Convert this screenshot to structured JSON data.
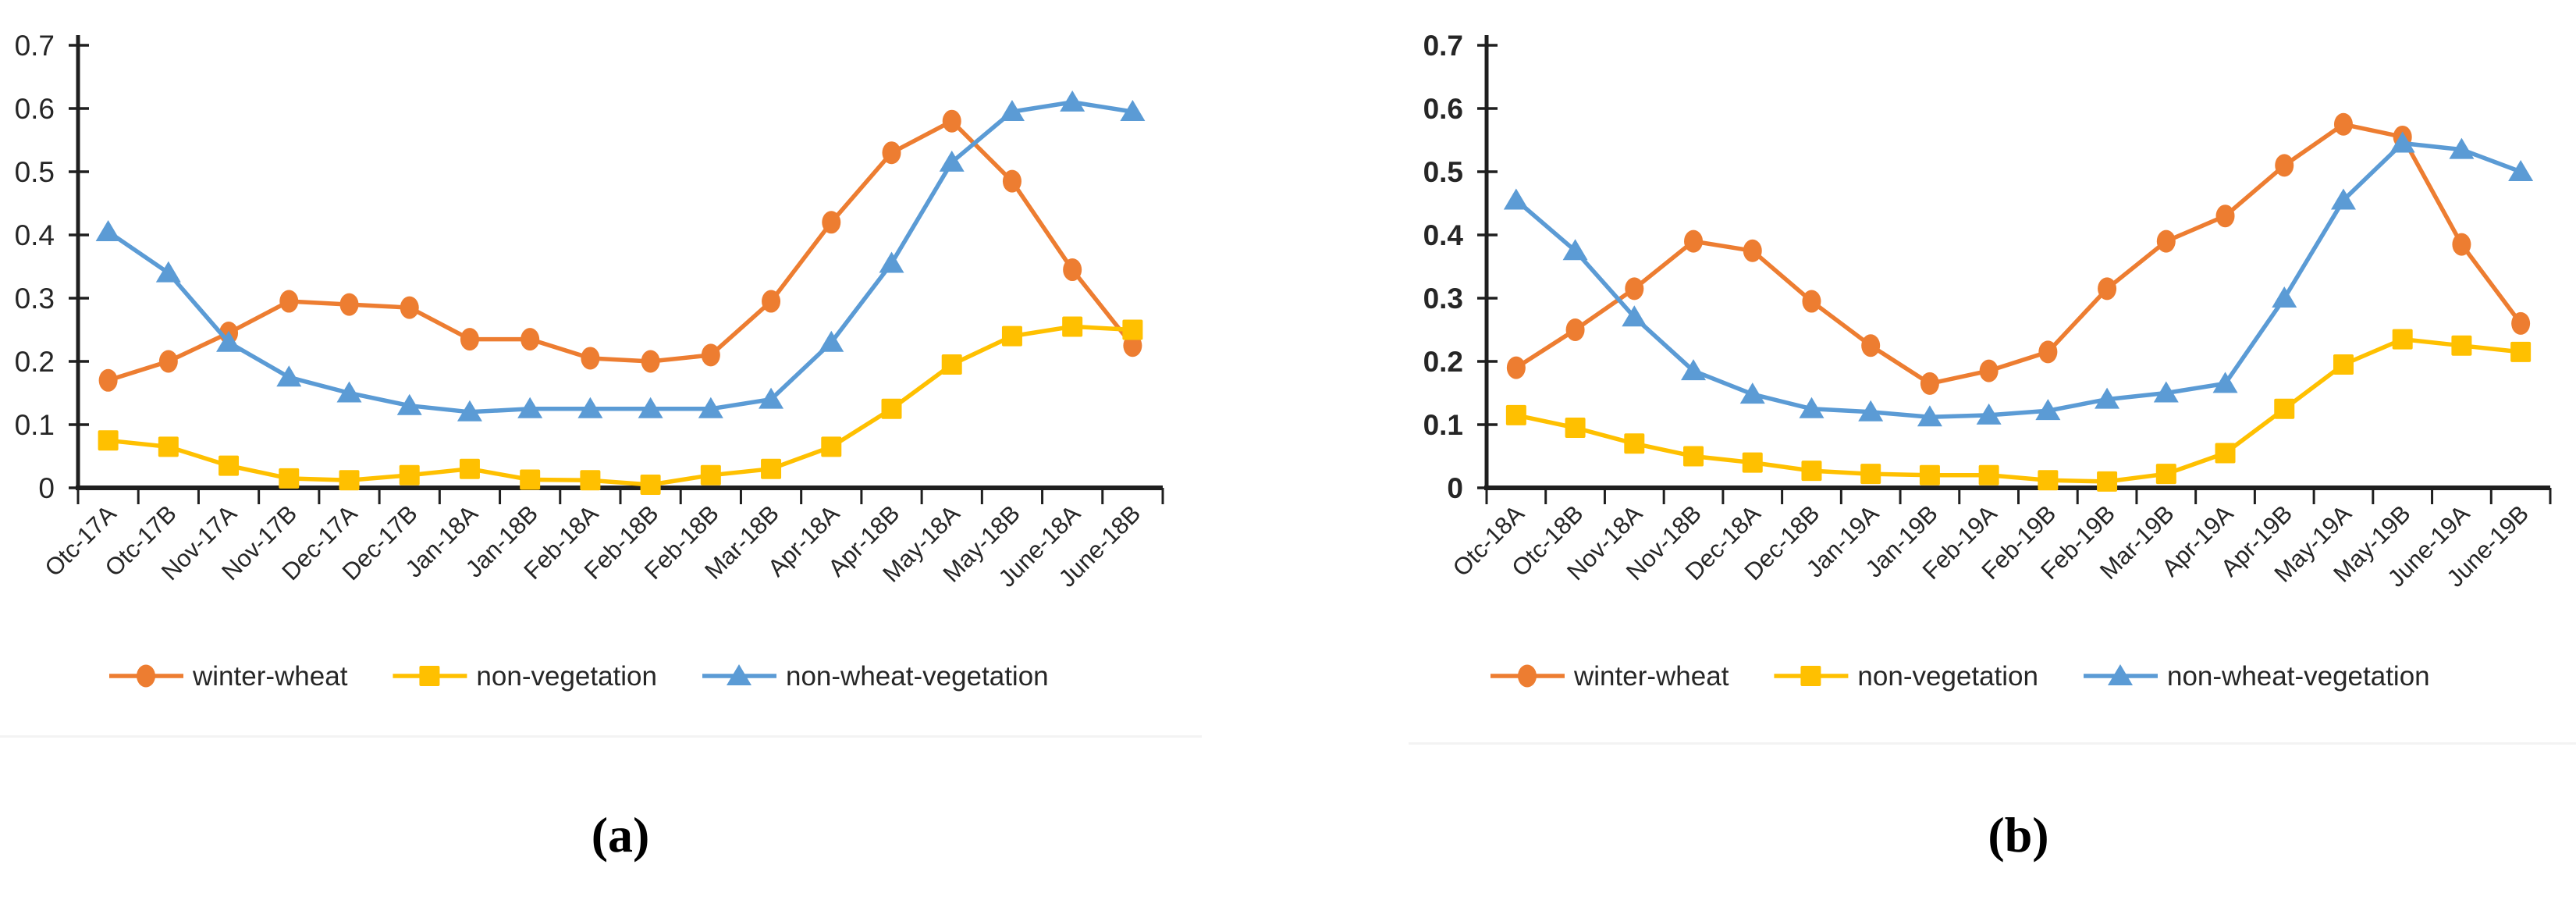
{
  "figure": {
    "background": "#ffffff",
    "colors": {
      "axis": "#1f1f1f",
      "text": "#262626",
      "divider": "#f3f3f3"
    },
    "captions": {
      "a": "(a)",
      "b": "(b)"
    }
  },
  "chart_data": [
    {
      "id": "a",
      "type": "line",
      "caption": "(a)",
      "title": "",
      "xlabel": "",
      "ylabel": "",
      "ylim": [
        0,
        0.7
      ],
      "ytick_step": 0.1,
      "ytick_labels": [
        "0.7",
        "0.6",
        "0.5",
        "0.4",
        "0.3",
        "0.2",
        "0.1",
        "0"
      ],
      "grid": false,
      "legend_position": "bottom",
      "categories": [
        "Otc-17A",
        "Otc-17B",
        "Nov-17A",
        "Nov-17B",
        "Dec-17A",
        "Dec-17B",
        "Jan-18A",
        "Jan-18B",
        "Feb-18A",
        "Feb-18B",
        "Feb-18B",
        "Mar-18B",
        "Apr-18A",
        "Apr-18B",
        "May-18A",
        "May-18B",
        "June-18A",
        "June-18B"
      ],
      "series": [
        {
          "name": "winter-wheat",
          "marker": "circle",
          "color": "#ED7D31",
          "values": [
            0.17,
            0.2,
            0.245,
            0.295,
            0.29,
            0.285,
            0.235,
            0.235,
            0.205,
            0.2,
            0.21,
            0.295,
            0.42,
            0.53,
            0.58,
            0.485,
            0.345,
            0.225
          ]
        },
        {
          "name": "non-vegetation",
          "marker": "square",
          "color": "#FFC000",
          "values": [
            0.075,
            0.065,
            0.035,
            0.015,
            0.012,
            0.02,
            0.03,
            0.013,
            0.012,
            0.005,
            0.02,
            0.03,
            0.065,
            0.125,
            0.195,
            0.24,
            0.255,
            0.25
          ]
        },
        {
          "name": "non-wheat-vegetation",
          "marker": "triangle",
          "color": "#5B9BD5",
          "values": [
            0.405,
            0.34,
            0.23,
            0.175,
            0.15,
            0.13,
            0.12,
            0.125,
            0.125,
            0.125,
            0.125,
            0.14,
            0.23,
            0.355,
            0.515,
            0.595,
            0.61,
            0.595
          ]
        }
      ],
      "legend": {
        "items": [
          {
            "label": "winter-wheat",
            "marker": "circle",
            "color": "#ED7D31"
          },
          {
            "label": "non-vegetation",
            "marker": "square",
            "color": "#FFC000"
          },
          {
            "label": "non-wheat-vegetation",
            "marker": "triangle",
            "color": "#5B9BD5"
          }
        ]
      }
    },
    {
      "id": "b",
      "type": "line",
      "caption": "(b)",
      "title": "",
      "xlabel": "",
      "ylabel": "",
      "ylim": [
        0,
        0.7
      ],
      "ytick_step": 0.1,
      "ytick_labels": [
        "0.7",
        "0.6",
        "0.5",
        "0.4",
        "0.3",
        "0.2",
        "0.1",
        "0"
      ],
      "grid": false,
      "legend_position": "bottom",
      "categories": [
        "Otc-18A",
        "Otc-18B",
        "Nov-18A",
        "Nov-18B",
        "Dec-18A",
        "Dec-18B",
        "Jan-19A",
        "Jan-19B",
        "Feb-19A",
        "Feb-19B",
        "Feb-19B",
        "Mar-19B",
        "Apr-19A",
        "Apr-19B",
        "May-19A",
        "May-19B",
        "June-19A",
        "June-19B"
      ],
      "series": [
        {
          "name": "winter-wheat",
          "marker": "circle",
          "color": "#ED7D31",
          "values": [
            0.19,
            0.25,
            0.315,
            0.39,
            0.375,
            0.295,
            0.225,
            0.165,
            0.185,
            0.215,
            0.315,
            0.39,
            0.43,
            0.51,
            0.575,
            0.555,
            0.385,
            0.26
          ]
        },
        {
          "name": "non-vegetation",
          "marker": "square",
          "color": "#FFC000",
          "values": [
            0.115,
            0.095,
            0.07,
            0.05,
            0.04,
            0.027,
            0.022,
            0.02,
            0.02,
            0.012,
            0.01,
            0.022,
            0.055,
            0.125,
            0.195,
            0.235,
            0.225,
            0.215
          ]
        },
        {
          "name": "non-wheat-vegetation",
          "marker": "triangle",
          "color": "#5B9BD5",
          "values": [
            0.455,
            0.375,
            0.27,
            0.185,
            0.148,
            0.125,
            0.12,
            0.112,
            0.115,
            0.122,
            0.14,
            0.15,
            0.165,
            0.3,
            0.455,
            0.545,
            0.535,
            0.5
          ]
        }
      ],
      "legend": {
        "items": [
          {
            "label": "winter-wheat",
            "marker": "circle",
            "color": "#ED7D31"
          },
          {
            "label": "non-vegetation",
            "marker": "square",
            "color": "#FFC000"
          },
          {
            "label": "non-wheat-vegetation",
            "marker": "triangle",
            "color": "#5B9BD5"
          }
        ]
      }
    }
  ]
}
